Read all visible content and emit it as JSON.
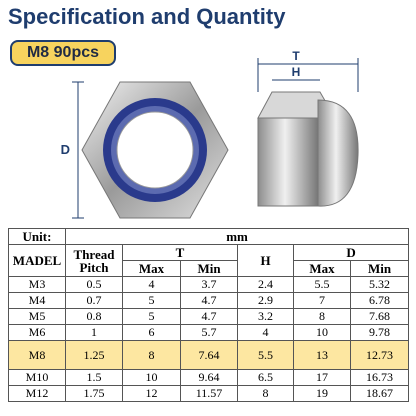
{
  "header": {
    "title": "Specification and Quantity",
    "badge": "M8 90pcs"
  },
  "dimensions": {
    "d": "D",
    "t": "T",
    "h": "H"
  },
  "table": {
    "unit_label": "Unit:",
    "unit": "mm",
    "headers": [
      "MADEL",
      "Thread Pitch",
      "T",
      "H",
      "D"
    ],
    "subheaders": [
      "Max",
      "Min",
      "Max",
      "Min"
    ],
    "rows": [
      [
        "M3",
        0.5,
        4,
        3.7,
        2.4,
        5.5,
        5.32
      ],
      [
        "M4",
        0.7,
        5,
        4.7,
        2.9,
        7,
        6.78
      ],
      [
        "M5",
        0.8,
        5,
        4.7,
        3.2,
        8,
        7.68
      ],
      [
        "M6",
        1,
        6,
        5.7,
        4,
        10,
        9.78
      ],
      [
        "M8",
        1.25,
        8,
        7.64,
        5.5,
        13,
        12.73
      ],
      [
        "M10",
        1.5,
        10,
        9.64,
        6.5,
        17,
        16.73
      ],
      [
        "M12",
        1.75,
        12,
        11.57,
        8,
        19,
        18.67
      ]
    ],
    "highlight_row": 4
  }
}
